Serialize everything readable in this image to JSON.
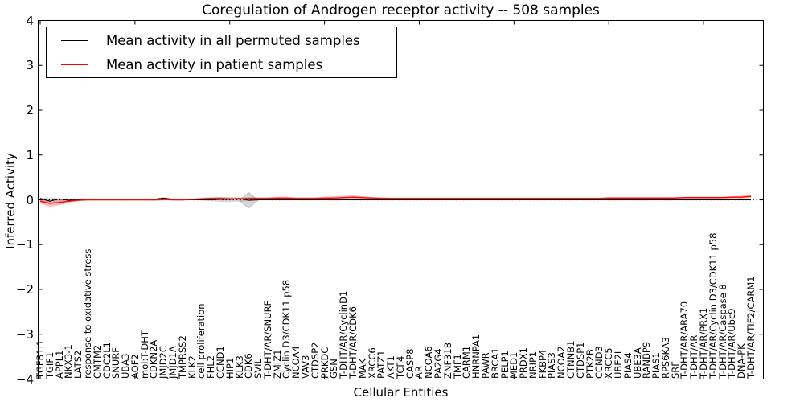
{
  "chart_data": {
    "type": "line",
    "title": "Coregulation of Androgen receptor activity -- 508 samples",
    "xlabel": "Cellular Entities",
    "ylabel": "Inferred Activity",
    "ylim": [
      -4,
      4
    ],
    "yticks": [
      4,
      3,
      2,
      1,
      0,
      -1,
      -2,
      -3,
      -4
    ],
    "xtick_rotation": 90,
    "grid": false,
    "legend_position": "upper left",
    "zero_line_style": "dotted",
    "categories": [
      "TGFB1I1",
      "TGIF1",
      "APPL1",
      "NKX3-1",
      "LATS2",
      "response to oxidative stress",
      "CMTM2",
      "CDC2L1",
      "SNURF",
      "UBA3",
      "AOF2",
      "mol:T-DHT",
      "CDKN2A",
      "JMJD2C",
      "JMJD1A",
      "TMPRSS2",
      "KLK2",
      "cell proliferation",
      "FHL2",
      "CCND1",
      "HIP1",
      "KLK3",
      "CDK6",
      "SVIL",
      "T-DHT/AR/SNURF",
      "ZMIZ1",
      "Cyclin D3/CDK11 p58",
      "NCOA4",
      "VAV3",
      "CTDSP2",
      "PRKDC",
      "GSN",
      "T-DHT/AR/CyclinD1",
      "T-DHT/AR/CDK6",
      "MAK",
      "XRCC6",
      "PATZ1",
      "AKT1",
      "TCF4",
      "CASP8",
      "AR",
      "NCOA6",
      "PA2G4",
      "ZNF318",
      "TMF1",
      "CARM1",
      "HNRNPA1",
      "PAWR",
      "BRCA1",
      "PELP1",
      "MED1",
      "PRDX1",
      "NRIP1",
      "FKBP4",
      "PIAS3",
      "NCOA2",
      "CTNNB1",
      "CTDSP1",
      "PTK2B",
      "CCND3",
      "XRCC5",
      "UBE2I",
      "PIAS4",
      "UBE3A",
      "RANBP9",
      "PIAS1",
      "RPS6KA3",
      "SRF",
      "T-DHT/AR/ARA70",
      "T-DHT/AR",
      "T-DHT/AR/PRX1",
      "T-DHT/AR/Cyclin D3/CDK11 p58",
      "T-DHT/AR/Caspase 8",
      "T-DHT/AR/Ubc9",
      "DNA-PK",
      "T-DHT/AR/TIF2/CARM1"
    ],
    "series": [
      {
        "name": "Mean activity in all permuted samples",
        "color": "#000000",
        "values": [
          0.03,
          -0.03,
          0.02,
          -0.01,
          0,
          0,
          0,
          0,
          0,
          0,
          0,
          0,
          0.01,
          0.04,
          0.01,
          0,
          0,
          0,
          0,
          0.01,
          0.01,
          0.03,
          -0.01,
          0,
          0,
          0,
          0,
          0,
          0,
          0,
          0,
          0,
          0,
          0,
          0,
          0,
          0,
          0,
          0,
          0,
          0,
          0,
          0,
          0,
          0,
          0,
          0,
          0,
          0,
          0,
          0,
          0,
          0,
          0,
          0,
          0,
          0,
          0,
          0,
          0,
          0,
          0,
          0,
          0,
          0,
          0,
          0,
          0,
          0,
          0,
          0,
          0,
          0,
          0,
          0,
          0
        ]
      },
      {
        "name": "Mean activity in patient samples",
        "color": "#ff0000",
        "values": [
          -0.03,
          -0.08,
          -0.06,
          -0.03,
          -0.01,
          0,
          0,
          0,
          0,
          0,
          0,
          0,
          0,
          0.01,
          0,
          0,
          0.01,
          0.02,
          0.03,
          0.03,
          0.02,
          0.02,
          0.03,
          0.03,
          0.03,
          0.04,
          0.04,
          0.03,
          0.03,
          0.03,
          0.04,
          0.04,
          0.05,
          0.06,
          0.05,
          0.04,
          0.03,
          0.03,
          0.03,
          0.03,
          0.03,
          0.03,
          0.03,
          0.03,
          0.03,
          0.03,
          0.03,
          0.03,
          0.03,
          0.03,
          0.03,
          0.03,
          0.03,
          0.03,
          0.03,
          0.03,
          0.03,
          0.03,
          0.03,
          0.03,
          0.04,
          0.04,
          0.04,
          0.04,
          0.04,
          0.04,
          0.04,
          0.04,
          0.05,
          0.05,
          0.05,
          0.05,
          0.05,
          0.06,
          0.06,
          0.08
        ]
      }
    ],
    "bands": [
      {
        "name": "patient-confidence-band",
        "color": "#ff2222",
        "opacity": 0.3,
        "upper": [
          0.01,
          -0.02,
          -0.01,
          0.01,
          0.01,
          0.01,
          0.01,
          0.01,
          0.01,
          0.01,
          0.01,
          0.01,
          0.02,
          0.03,
          0.02,
          0.02,
          0.03,
          0.05,
          0.06,
          0.06,
          0.05,
          0.05,
          0.06,
          0.06,
          0.06,
          0.07,
          0.07,
          0.06,
          0.06,
          0.06,
          0.07,
          0.08,
          0.09,
          0.1,
          0.08,
          0.07,
          0.06,
          0.05,
          0.05,
          0.05,
          0.05,
          0.05,
          0.05,
          0.05,
          0.05,
          0.05,
          0.05,
          0.05,
          0.05,
          0.05,
          0.05,
          0.05,
          0.05,
          0.05,
          0.05,
          0.05,
          0.05,
          0.05,
          0.05,
          0.05,
          0.06,
          0.06,
          0.06,
          0.06,
          0.06,
          0.06,
          0.06,
          0.06,
          0.07,
          0.07,
          0.07,
          0.07,
          0.07,
          0.08,
          0.09,
          0.12
        ],
        "lower": [
          -0.08,
          -0.16,
          -0.12,
          -0.07,
          -0.03,
          -0.01,
          -0.01,
          -0.01,
          -0.01,
          -0.01,
          -0.01,
          -0.01,
          -0.01,
          -0.01,
          -0.01,
          -0.01,
          -0.01,
          0,
          0,
          0,
          0,
          0,
          0,
          0,
          0,
          0.01,
          0.01,
          0,
          0,
          0,
          0.01,
          0.01,
          0.01,
          0.02,
          0.01,
          0.01,
          0.01,
          0.01,
          0.01,
          0.01,
          0.01,
          0.01,
          0.01,
          0.01,
          0.01,
          0.01,
          0.01,
          0.01,
          0.01,
          0.01,
          0.01,
          0.01,
          0.01,
          0.01,
          0.01,
          0.01,
          0.01,
          0.01,
          0.01,
          0.01,
          0.02,
          0.02,
          0.02,
          0.02,
          0.02,
          0.02,
          0.02,
          0.02,
          0.02,
          0.02,
          0.02,
          0.02,
          0.02,
          0.03,
          0.03,
          0.04
        ]
      },
      {
        "name": "permuted-confidence-band",
        "color": "#999999",
        "opacity": 0.35,
        "upper": [
          0.05,
          0.05,
          0.04,
          0.012,
          0.012,
          0.012,
          0.012,
          0.012,
          0.012,
          0.012,
          0.012,
          0.012,
          0.02,
          0.05,
          0.03,
          0.012,
          0.012,
          0.012,
          0.04,
          0.06,
          0.06,
          0.05,
          0.03,
          0.012,
          0.012,
          0.012,
          0.012,
          0.012,
          0.012,
          0.012,
          0.012,
          0.012,
          0.012,
          0.012,
          0.012,
          0.012,
          0.012,
          0.012,
          0.012,
          0.012,
          0.012,
          0.012,
          0.012,
          0.012,
          0.012,
          0.012,
          0.012,
          0.012,
          0.012,
          0.012,
          0.012,
          0.012,
          0.012,
          0.012,
          0.012,
          0.012,
          0.012,
          0.012,
          0.012,
          0.012,
          0.012,
          0.012,
          0.012,
          0.012,
          0.012,
          0.012,
          0.012,
          0.012,
          0.012,
          0.012,
          0.012,
          0.012,
          0.012,
          0.012,
          0.012,
          0.012
        ],
        "lower": [
          -0.05,
          -0.07,
          -0.04,
          -0.012,
          -0.012,
          -0.012,
          -0.012,
          -0.012,
          -0.012,
          -0.012,
          -0.012,
          -0.012,
          -0.02,
          -0.02,
          -0.012,
          -0.012,
          -0.012,
          -0.012,
          -0.03,
          -0.05,
          -0.05,
          -0.04,
          -0.03,
          -0.012,
          -0.012,
          -0.012,
          -0.012,
          -0.012,
          -0.012,
          -0.012,
          -0.012,
          -0.012,
          -0.012,
          -0.012,
          -0.012,
          -0.012,
          -0.012,
          -0.012,
          -0.012,
          -0.012,
          -0.012,
          -0.012,
          -0.012,
          -0.012,
          -0.012,
          -0.012,
          -0.012,
          -0.012,
          -0.012,
          -0.012,
          -0.012,
          -0.012,
          -0.012,
          -0.012,
          -0.012,
          -0.012,
          -0.012,
          -0.012,
          -0.012,
          -0.012,
          -0.012,
          -0.012,
          -0.012,
          -0.012,
          -0.012,
          -0.012,
          -0.012,
          -0.012,
          -0.012,
          -0.012,
          -0.012,
          -0.012,
          -0.012,
          -0.012,
          -0.012,
          -0.012
        ]
      }
    ],
    "annotations": [
      {
        "type": "diamond",
        "category_index": 22,
        "value": -0.01,
        "color": "#969696",
        "opacity": 0.38
      }
    ]
  }
}
